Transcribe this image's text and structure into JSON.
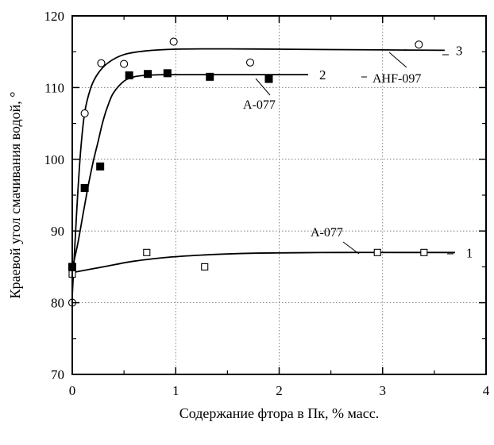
{
  "chart_data": {
    "type": "scatter",
    "xlabel": "Содержание фтора в Пк, % масс.",
    "ylabel": "Краевой угол смачивания водой, °",
    "xlim": [
      0,
      4
    ],
    "ylim": [
      70,
      120
    ],
    "xticks": [
      0,
      1,
      2,
      3,
      4
    ],
    "yticks": [
      70,
      80,
      90,
      100,
      110,
      120
    ],
    "grid": "major, dotted",
    "series": [
      {
        "name": "1",
        "label": "A-077",
        "marker": "open-square",
        "points": [
          [
            0,
            84
          ],
          [
            0.72,
            87
          ],
          [
            1.28,
            85
          ],
          [
            2.95,
            87
          ],
          [
            3.4,
            87
          ]
        ],
        "fit": [
          [
            0,
            84.2
          ],
          [
            0.3,
            85.0
          ],
          [
            0.6,
            85.8
          ],
          [
            0.9,
            86.3
          ],
          [
            1.2,
            86.6
          ],
          [
            1.6,
            86.85
          ],
          [
            2.0,
            86.95
          ],
          [
            2.6,
            87.0
          ],
          [
            3.2,
            87.0
          ],
          [
            3.7,
            87.0
          ]
        ]
      },
      {
        "name": "2",
        "label": "A-077",
        "marker": "filled-square",
        "points": [
          [
            0,
            85
          ],
          [
            0.12,
            96
          ],
          [
            0.27,
            99
          ],
          [
            0.55,
            111.7
          ],
          [
            0.73,
            111.9
          ],
          [
            0.92,
            112
          ],
          [
            1.33,
            111.5
          ],
          [
            1.9,
            111.2
          ]
        ],
        "fit": [
          [
            0,
            84.8
          ],
          [
            0.05,
            88
          ],
          [
            0.1,
            92
          ],
          [
            0.15,
            96
          ],
          [
            0.2,
            99.5
          ],
          [
            0.25,
            102.5
          ],
          [
            0.3,
            105.5
          ],
          [
            0.35,
            107.7
          ],
          [
            0.4,
            109.3
          ],
          [
            0.5,
            110.9
          ],
          [
            0.6,
            111.5
          ],
          [
            0.7,
            111.7
          ],
          [
            0.9,
            111.8
          ],
          [
            1.2,
            111.8
          ],
          [
            1.6,
            111.8
          ],
          [
            2.0,
            111.8
          ],
          [
            2.28,
            111.8
          ]
        ]
      },
      {
        "name": "3",
        "label": "AHF-097",
        "marker": "open-circle",
        "points": [
          [
            0,
            80
          ],
          [
            0.12,
            106.4
          ],
          [
            0.28,
            113.4
          ],
          [
            0.5,
            113.3
          ],
          [
            0.98,
            116.4
          ],
          [
            1.72,
            113.5
          ],
          [
            3.35,
            116
          ]
        ],
        "fit": [
          [
            0,
            81
          ],
          [
            0.04,
            92
          ],
          [
            0.08,
            101
          ],
          [
            0.12,
            106.5
          ],
          [
            0.18,
            110
          ],
          [
            0.25,
            112
          ],
          [
            0.35,
            113.5
          ],
          [
            0.5,
            114.6
          ],
          [
            0.7,
            115.1
          ],
          [
            1.0,
            115.35
          ],
          [
            1.5,
            115.4
          ],
          [
            2.0,
            115.35
          ],
          [
            2.5,
            115.3
          ],
          [
            3.0,
            115.25
          ],
          [
            3.6,
            115.2
          ]
        ]
      }
    ],
    "annotations": [
      {
        "text": "AHF-097",
        "series": "3"
      },
      {
        "text": "A-077",
        "series": "2"
      },
      {
        "text": "A-077",
        "series": "1"
      }
    ]
  }
}
